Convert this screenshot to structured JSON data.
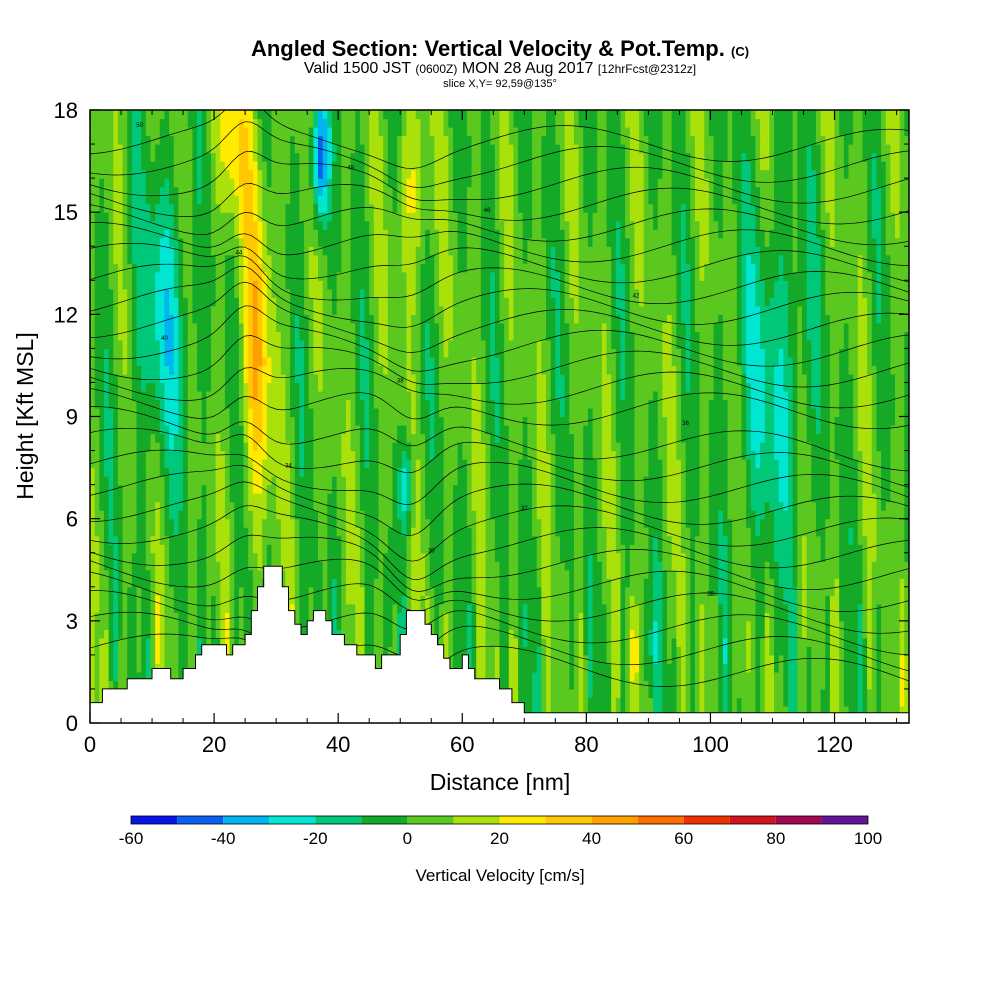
{
  "header": {
    "title_main": "Angled Section: Vertical Velocity & Pot.Temp.",
    "title_unit": "(C)",
    "subtitle_pre": "Valid 1500 JST",
    "subtitle_utc": "(0600Z)",
    "subtitle_post": "MON 28 Aug 2017",
    "subtitle_fcst": "[12hrFcst@2312z]",
    "slice": "slice X,Y= 92,59@135°"
  },
  "chart_data": {
    "type": "heatmap",
    "title": "Angled Section: Vertical Velocity & Pot.Temp. (C)",
    "xlabel": "Distance [nm]",
    "ylabel": "Height [Kft MSL]",
    "xlim": [
      0,
      132
    ],
    "ylim": [
      0,
      18
    ],
    "x_ticks": [
      0,
      20,
      40,
      60,
      80,
      100,
      120
    ],
    "y_ticks": [
      0,
      3,
      6,
      9,
      12,
      15,
      18
    ],
    "colorbar": {
      "label": "Vertical Velocity [cm/s]",
      "ticks": [
        -60,
        -40,
        -20,
        0,
        20,
        40,
        60,
        80,
        100
      ],
      "bounds": [
        -60,
        -50,
        -40,
        -30,
        -20,
        -10,
        0,
        10,
        20,
        30,
        40,
        50,
        60,
        70,
        80,
        90,
        100
      ],
      "colors": [
        "#0a14e6",
        "#0a5ff0",
        "#00b4f0",
        "#00e6d2",
        "#00c878",
        "#14aa28",
        "#5ac81e",
        "#aae10a",
        "#ffeb00",
        "#ffc800",
        "#ffa000",
        "#ff6e00",
        "#f03200",
        "#d2141e",
        "#a00a50",
        "#641496"
      ]
    },
    "contour_labels": [
      "50",
      "48",
      "46",
      "44",
      "42",
      "40",
      "38",
      "36",
      "34",
      "32",
      "30",
      "28"
    ],
    "grid": false,
    "legend": "bottom"
  }
}
